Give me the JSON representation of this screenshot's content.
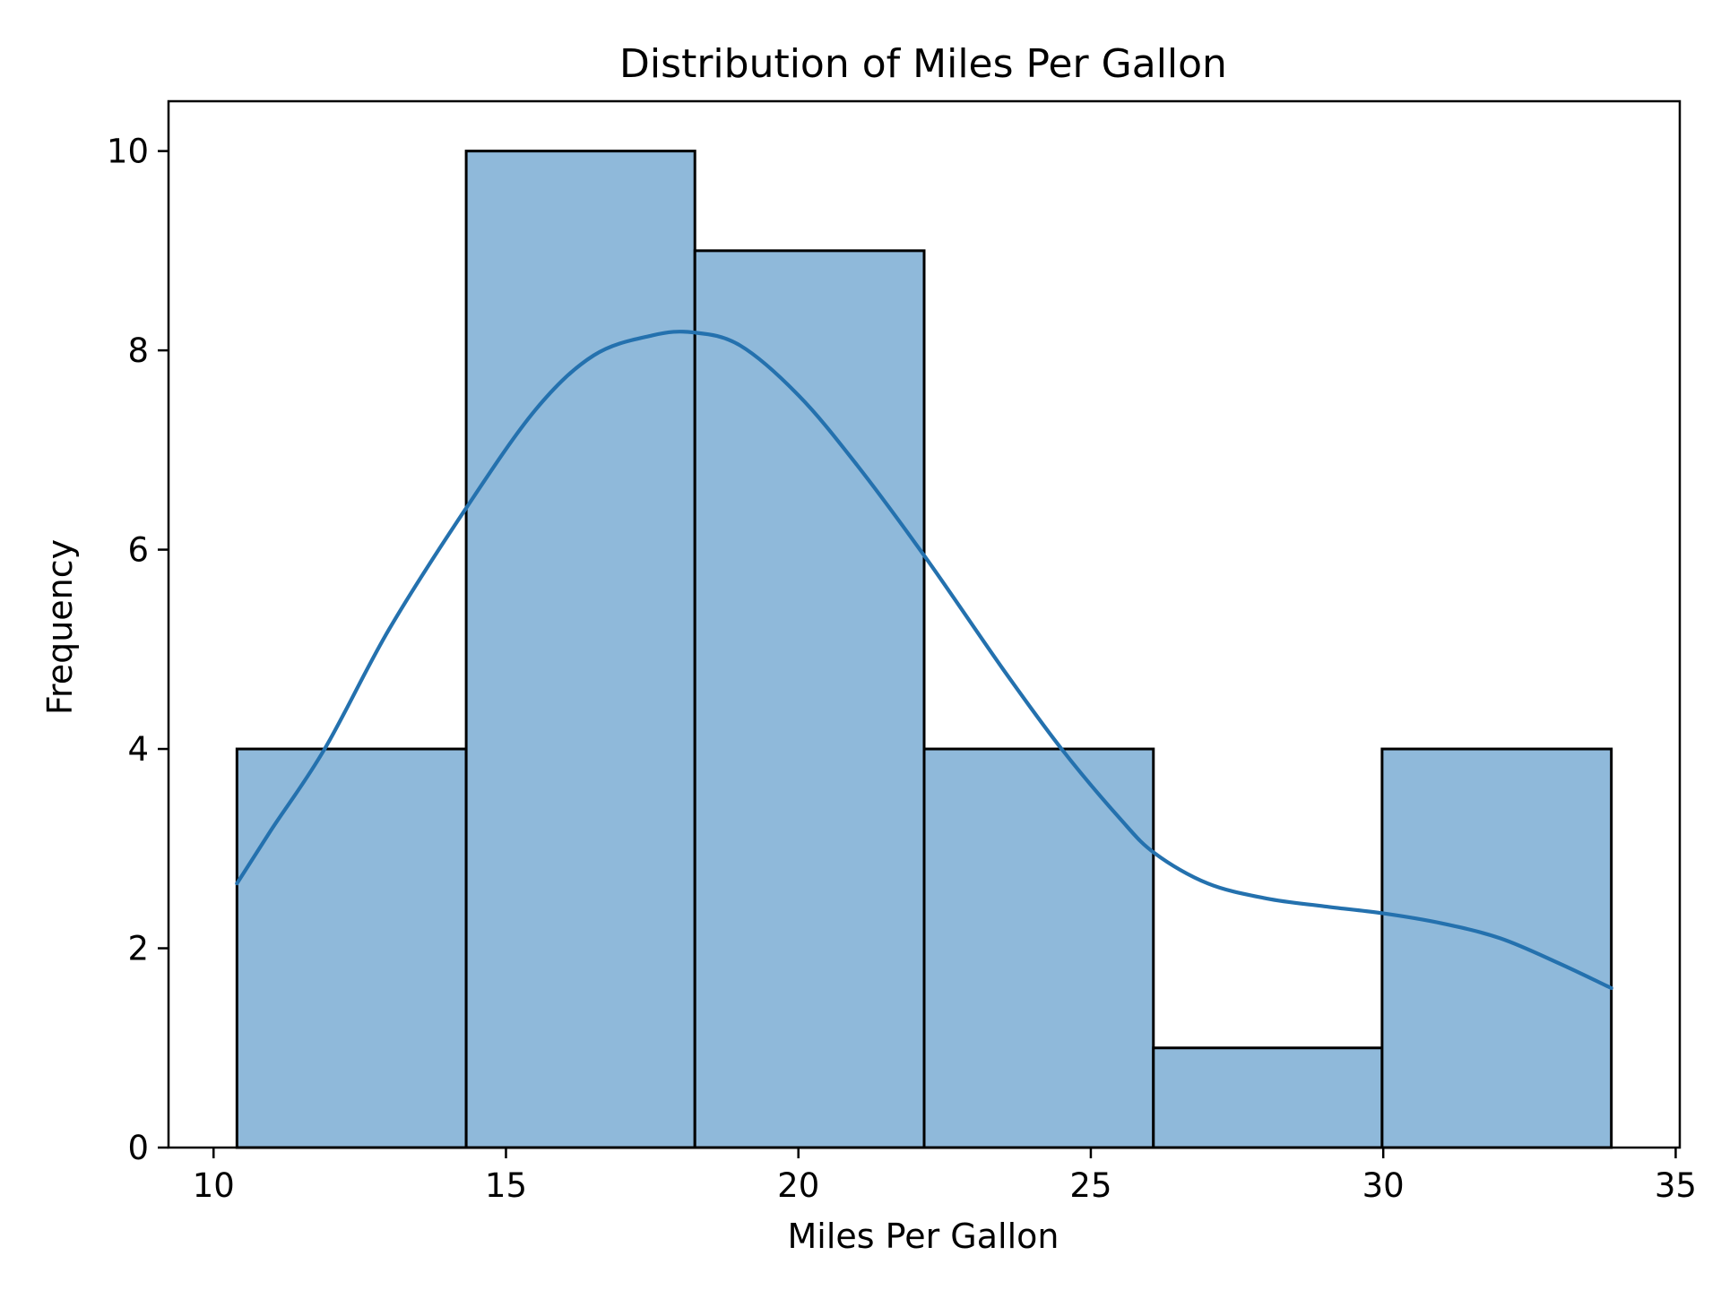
{
  "chart_data": {
    "type": "bar",
    "histogram": true,
    "title": "Distribution of Miles Per Gallon",
    "xlabel": "Miles Per Gallon",
    "ylabel": "Frequency",
    "xlim": [
      9.23,
      35.07
    ],
    "ylim": [
      0,
      10.5
    ],
    "xticks": [
      10,
      15,
      20,
      25,
      30,
      35
    ],
    "yticks": [
      0,
      2,
      4,
      6,
      8,
      10
    ],
    "bin_edges": [
      10.4,
      14.32,
      18.23,
      22.15,
      26.07,
      29.98,
      33.9
    ],
    "values": [
      4,
      10,
      9,
      4,
      1,
      4
    ],
    "kde": {
      "x": [
        10.4,
        11.0,
        11.9,
        13.0,
        14.3,
        15.5,
        16.5,
        17.5,
        18.2,
        19.0,
        20.0,
        21.0,
        22.2,
        23.5,
        24.5,
        25.5,
        26.1,
        27.0,
        28.0,
        29.0,
        30.0,
        31.0,
        32.0,
        33.0,
        33.9
      ],
      "y": [
        2.65,
        3.2,
        4.0,
        5.2,
        6.4,
        7.4,
        7.95,
        8.15,
        8.18,
        8.05,
        7.55,
        6.85,
        5.9,
        4.8,
        4.0,
        3.3,
        2.95,
        2.65,
        2.5,
        2.42,
        2.35,
        2.25,
        2.1,
        1.85,
        1.6
      ]
    },
    "grid": false,
    "legend": "none",
    "colors": {
      "bar_fill": "#8fb9da",
      "bar_edge": "#000000",
      "kde_line": "#2471ae",
      "axis": "#000000"
    }
  }
}
